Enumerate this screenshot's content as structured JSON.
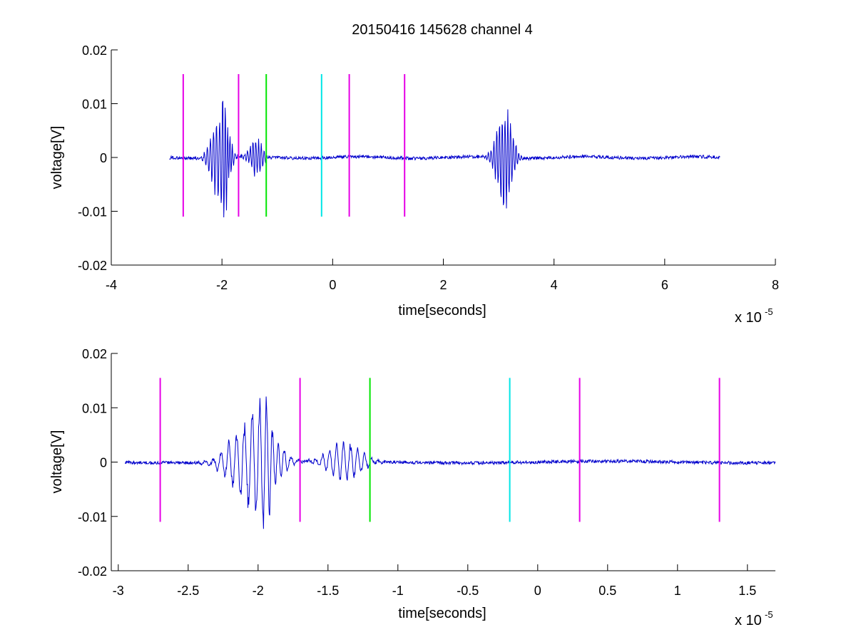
{
  "chart_data": [
    {
      "type": "line",
      "title": "20150416 145628 channel 4",
      "xlabel": "time[seconds]",
      "ylabel": "voltage[V]",
      "x_exponent_label": "x 10",
      "x_exponent_sup": "-5",
      "x_scale": 1e-05,
      "xlim": [
        -4,
        8
      ],
      "ylim": [
        -0.02,
        0.02
      ],
      "xticks": [
        -4,
        -2,
        0,
        2,
        4,
        6,
        8
      ],
      "xtick_labels": [
        "-4",
        "-2",
        "0",
        "2",
        "4",
        "6",
        "8"
      ],
      "yticks": [
        -0.02,
        -0.01,
        0,
        0.01,
        0.02
      ],
      "ytick_labels": [
        "-0.02",
        "-0.01",
        "0",
        "0.01",
        "0.02"
      ],
      "grid": false,
      "signal": {
        "color": "#0000cc",
        "x_range": [
          -2.95,
          7.0
        ],
        "baseline_noise": 0.0003,
        "bursts": [
          {
            "center": -2.05,
            "width": 0.18,
            "amplitude": 0.009,
            "freq": 18
          },
          {
            "center": -1.92,
            "width": 0.08,
            "amplitude": 0.012,
            "freq": 22
          },
          {
            "center": -1.38,
            "width": 0.15,
            "amplitude": 0.004,
            "freq": 20
          },
          {
            "center": 3.1,
            "width": 0.18,
            "amplitude": 0.011,
            "freq": 20
          }
        ]
      },
      "markers": [
        {
          "x": -2.7,
          "color": "#e600e6"
        },
        {
          "x": -1.7,
          "color": "#e600e6"
        },
        {
          "x": -1.2,
          "color": "#00e600"
        },
        {
          "x": -0.2,
          "color": "#00e6e6"
        },
        {
          "x": 0.3,
          "color": "#e600e6"
        },
        {
          "x": 1.3,
          "color": "#e600e6"
        }
      ],
      "marker_span": [
        -0.011,
        0.0155
      ]
    },
    {
      "type": "line",
      "title": "",
      "xlabel": "time[seconds]",
      "ylabel": "voltage[V]",
      "x_exponent_label": "x 10",
      "x_exponent_sup": "-5",
      "x_scale": 1e-05,
      "xlim": [
        -3.05,
        1.7
      ],
      "ylim": [
        -0.02,
        0.02
      ],
      "xticks": [
        -3,
        -2.5,
        -2,
        -1.5,
        -1,
        -0.5,
        0,
        0.5,
        1,
        1.5
      ],
      "xtick_labels": [
        "-3",
        "-2.5",
        "-2",
        "-1.5",
        "-1",
        "-0.5",
        "0",
        "0.5",
        "1",
        "1.5"
      ],
      "yticks": [
        -0.02,
        -0.01,
        0,
        0.01,
        0.02
      ],
      "ytick_labels": [
        "-0.02",
        "-0.01",
        "0",
        "0.01",
        "0.02"
      ],
      "grid": false,
      "signal": {
        "color": "#0000cc",
        "x_range": [
          -2.95,
          1.7
        ],
        "baseline_noise": 0.0003,
        "bursts": [
          {
            "center": -2.05,
            "width": 0.18,
            "amplitude": 0.009,
            "freq": 18
          },
          {
            "center": -1.92,
            "width": 0.08,
            "amplitude": 0.012,
            "freq": 22
          },
          {
            "center": -1.38,
            "width": 0.15,
            "amplitude": 0.004,
            "freq": 20
          }
        ]
      },
      "markers": [
        {
          "x": -2.7,
          "color": "#e600e6"
        },
        {
          "x": -1.7,
          "color": "#e600e6"
        },
        {
          "x": -1.2,
          "color": "#00e600"
        },
        {
          "x": -0.2,
          "color": "#00e6e6"
        },
        {
          "x": 0.3,
          "color": "#e600e6"
        },
        {
          "x": 1.3,
          "color": "#e600e6"
        }
      ],
      "marker_span": [
        -0.011,
        0.0155
      ]
    }
  ]
}
